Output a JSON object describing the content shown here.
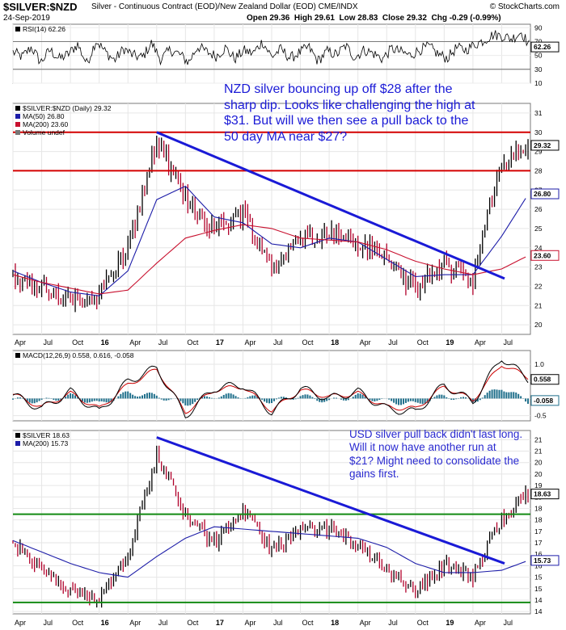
{
  "header": {
    "symbol": "$SILVER:$NZD",
    "description": "Silver - Continuous Contract (EOD)/New Zealand Dollar (EOD) CME/INDX",
    "date": "24-Sep-2019",
    "open": "Open 29.36",
    "high": "High 29.61",
    "low": "Low 28.83",
    "close": "Close 29.32",
    "chg": "Chg -0.29 (-0.99%)",
    "brand": "© StockCharts.com"
  },
  "annotations": {
    "nzd": "NZD silver bouncing up off $28 after the sharp dip. Looks like challenging the high at $31. But will we then see a pull back  to the 50 day MA near $27?",
    "usd": "USD silver pull back didn't last long. Will it now have another run at $21? Might need to consolidate the gains first."
  },
  "colors": {
    "price_up": "#000000",
    "price_down": "#b0002a",
    "ma50": "#1c1ca8",
    "ma200": "#c8102e",
    "trendline": "#1a1ad6",
    "support_nzd": "#d40000",
    "support_usd": "#138a13",
    "macd_line": "#000000",
    "signal_line": "#cc0000",
    "histogram": "#1f6f8b"
  },
  "chart_data": [
    {
      "type": "line",
      "panel": "rsi",
      "legend": [
        "RSI(14) 62.26"
      ],
      "ylim": [
        10,
        95
      ],
      "yticks": [
        90,
        70,
        50,
        30,
        10
      ],
      "last_value_label": "62.26",
      "reference_lines": [
        70,
        30
      ],
      "series": [
        {
          "name": "RSI(14)",
          "values": [
            55,
            48,
            62,
            40,
            58,
            45,
            52,
            66,
            38,
            72,
            55,
            43,
            60,
            50,
            47,
            68,
            44,
            58,
            52,
            40,
            63,
            55,
            49,
            61,
            45,
            57,
            53,
            70,
            48,
            59,
            46,
            54,
            62,
            42,
            56,
            51,
            64,
            47,
            58,
            53,
            45,
            60,
            55,
            50,
            58,
            63,
            52,
            46,
            61,
            58,
            66,
            72,
            80,
            78,
            74,
            84,
            62
          ]
        }
      ]
    },
    {
      "type": "line",
      "panel": "price_nzd",
      "legend": [
        "$SILVER:$NZD (Daily) 29.32",
        "MA(50) 26.80",
        "MA(200) 23.60",
        "Volume undef"
      ],
      "ylim": [
        19.5,
        31.5
      ],
      "yticks": [
        31,
        30,
        29,
        28,
        27,
        26,
        25,
        24,
        23,
        22,
        21,
        20
      ],
      "last_value_labels": [
        "29.32",
        "26.80",
        "23.60"
      ],
      "x": [
        "Apr 2015",
        "Jul 2015",
        "Oct 2015",
        "Jan 2016",
        "Apr 2016",
        "Jul 2016",
        "Oct 2016",
        "Jan 2017",
        "Apr 2017",
        "Jul 2017",
        "Oct 2017",
        "Jan 2018",
        "Apr 2018",
        "Jul 2018",
        "Oct 2018",
        "Jan 2019",
        "Apr 2019",
        "Jul 2019",
        "Sep 2019"
      ],
      "series": [
        {
          "name": "$SILVER:$NZD",
          "values": [
            22.5,
            21.8,
            21.2,
            21.6,
            24.0,
            29.5,
            26.5,
            25.0,
            25.8,
            23.0,
            24.5,
            24.8,
            24.2,
            23.5,
            21.8,
            23.2,
            22.4,
            28.5,
            29.32
          ]
        },
        {
          "name": "MA(50)",
          "values": [
            22.8,
            22.2,
            21.7,
            21.5,
            22.8,
            26.5,
            27.2,
            25.6,
            25.3,
            24.2,
            24.0,
            24.5,
            24.3,
            23.4,
            22.5,
            22.6,
            22.6,
            24.6,
            26.8
          ]
        },
        {
          "name": "MA(200)",
          "values": [
            22.6,
            22.2,
            21.9,
            21.6,
            21.8,
            23.2,
            24.5,
            24.9,
            25.2,
            25.0,
            24.5,
            24.4,
            24.3,
            23.9,
            23.3,
            22.9,
            22.6,
            22.9,
            23.6
          ]
        }
      ],
      "support_lines": [
        30.0,
        28.0
      ],
      "trendline": {
        "from": [
          "Jul 2016",
          30.0
        ],
        "to": [
          "Jul 2019",
          22.4
        ]
      }
    },
    {
      "type": "line",
      "panel": "macd",
      "legend": [
        "MACD(12,26,9) 0.558, 0.616, -0.058"
      ],
      "ylim": [
        -0.65,
        1.4
      ],
      "yticks": [
        1.0,
        0.5,
        0.0,
        -0.5
      ],
      "last_value_labels": [
        "0.558",
        "-0.058"
      ],
      "series": [
        {
          "name": "MACD",
          "values": [
            0.1,
            -0.3,
            0.2,
            -0.4,
            0.5,
            0.9,
            -0.5,
            0.3,
            0.4,
            -0.4,
            0.3,
            0.0,
            0.2,
            -0.3,
            -0.4,
            0.4,
            -0.1,
            1.2,
            0.558
          ]
        },
        {
          "name": "Signal",
          "values": [
            0.12,
            -0.25,
            0.15,
            -0.3,
            0.4,
            0.85,
            -0.4,
            0.25,
            0.35,
            -0.35,
            0.25,
            0.05,
            0.15,
            -0.25,
            -0.3,
            0.35,
            -0.05,
            1.0,
            0.616
          ]
        }
      ]
    },
    {
      "type": "line",
      "panel": "price_usd",
      "legend": [
        "$SILVER 18.63",
        "MA(200) 15.73"
      ],
      "ylim": [
        13.4,
        21.4
      ],
      "yticks": [
        21.0,
        20.5,
        20.0,
        19.5,
        19.0,
        18.5,
        18.0,
        17.5,
        17.0,
        16.5,
        16.0,
        15.5,
        15.0,
        14.5,
        14.0,
        13.5
      ],
      "last_value_labels": [
        "18.63",
        "15.73"
      ],
      "series": [
        {
          "name": "$SILVER",
          "values": [
            16.5,
            15.3,
            14.3,
            14.1,
            16.0,
            20.3,
            17.8,
            16.5,
            17.9,
            16.2,
            17.0,
            17.1,
            16.4,
            15.4,
            14.4,
            15.6,
            15.0,
            17.6,
            18.63
          ]
        },
        {
          "name": "MA(200)",
          "values": [
            16.6,
            16.1,
            15.6,
            15.2,
            15.0,
            15.9,
            16.7,
            17.2,
            17.1,
            17.0,
            16.9,
            16.8,
            16.7,
            16.3,
            15.6,
            15.2,
            15.2,
            15.3,
            15.73
          ]
        }
      ],
      "support_lines": [
        17.75,
        13.9
      ],
      "trendline": {
        "from": [
          "Jul 2016",
          21.1
        ],
        "to": [
          "Jul 2019",
          15.6
        ]
      }
    }
  ],
  "time_axis": {
    "labels": [
      "Apr",
      "Jul",
      "Oct",
      "16",
      "Apr",
      "Jul",
      "Oct",
      "17",
      "Apr",
      "Jul",
      "Oct",
      "18",
      "Apr",
      "Jul",
      "Oct",
      "19",
      "Apr",
      "Jul"
    ],
    "bold": [
      "16",
      "17",
      "18",
      "19"
    ]
  }
}
